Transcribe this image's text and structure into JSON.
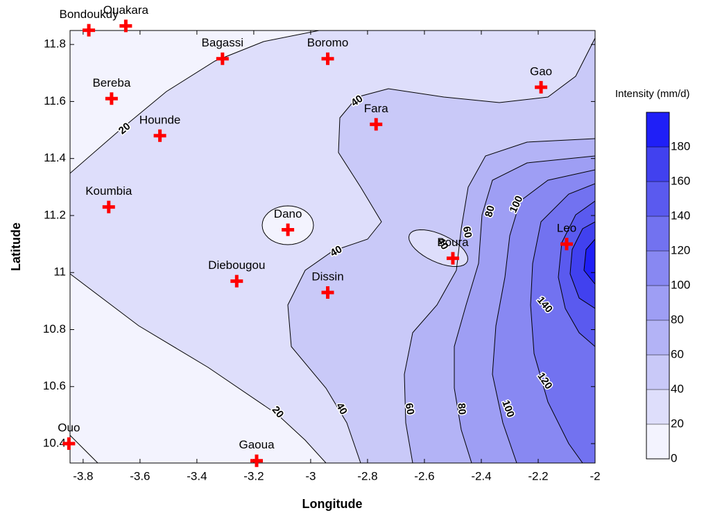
{
  "chart_data": {
    "type": "contour",
    "xlabel": "Longitude",
    "ylabel": "Latitude",
    "xlim": [
      -3.846,
      -2
    ],
    "ylim": [
      10.332,
      11.849
    ],
    "xticks": [
      -3.8,
      -3.6,
      -3.4,
      -3.2,
      -3,
      -2.8,
      -2.6,
      -2.4,
      -2.2,
      -2
    ],
    "yticks": [
      10.4,
      10.6,
      10.8,
      11,
      11.2,
      11.4,
      11.6,
      11.8
    ],
    "levels": [
      0,
      20,
      40,
      60,
      80,
      100,
      120,
      140,
      160,
      180
    ],
    "colors": [
      "#f3f3fe",
      "#dedefb",
      "#c9c9f8",
      "#b3b3f6",
      "#9e9ef4",
      "#8888f2",
      "#7272f0",
      "#5a5aef",
      "#4141ef",
      "#1f1ff7"
    ],
    "line_color": "#000000",
    "marker_color": "#ff0000",
    "colorbar_title": "Intensity (mm/d)",
    "colorbar_lim": [
      0,
      200
    ],
    "colorbar_ticks": [
      0,
      20,
      40,
      60,
      80,
      100,
      120,
      140,
      160,
      180
    ],
    "stations": [
      {
        "name": "Bondoukuy",
        "lon": -3.78,
        "lat": 11.85
      },
      {
        "name": "Ouakara",
        "lon": -3.65,
        "lat": 11.865
      },
      {
        "name": "Bagassi",
        "lon": -3.31,
        "lat": 11.75
      },
      {
        "name": "Boromo",
        "lon": -2.94,
        "lat": 11.75
      },
      {
        "name": "Gao",
        "lon": -2.19,
        "lat": 11.65
      },
      {
        "name": "Bereba",
        "lon": -3.7,
        "lat": 11.61
      },
      {
        "name": "Fara",
        "lon": -2.77,
        "lat": 11.52
      },
      {
        "name": "Hounde",
        "lon": -3.53,
        "lat": 11.48
      },
      {
        "name": "Koumbia",
        "lon": -3.71,
        "lat": 11.23
      },
      {
        "name": "Dano",
        "lon": -3.08,
        "lat": 11.15
      },
      {
        "name": "Boura",
        "lon": -2.5,
        "lat": 11.05
      },
      {
        "name": "Leo",
        "lon": -2.1,
        "lat": 11.1
      },
      {
        "name": "Diebougou",
        "lon": -3.26,
        "lat": 10.97
      },
      {
        "name": "Dissin",
        "lon": -2.94,
        "lat": 10.93
      },
      {
        "name": "Ouo",
        "lon": -3.85,
        "lat": 10.4
      },
      {
        "name": "Gaoua",
        "lon": -3.19,
        "lat": 10.34
      }
    ]
  }
}
